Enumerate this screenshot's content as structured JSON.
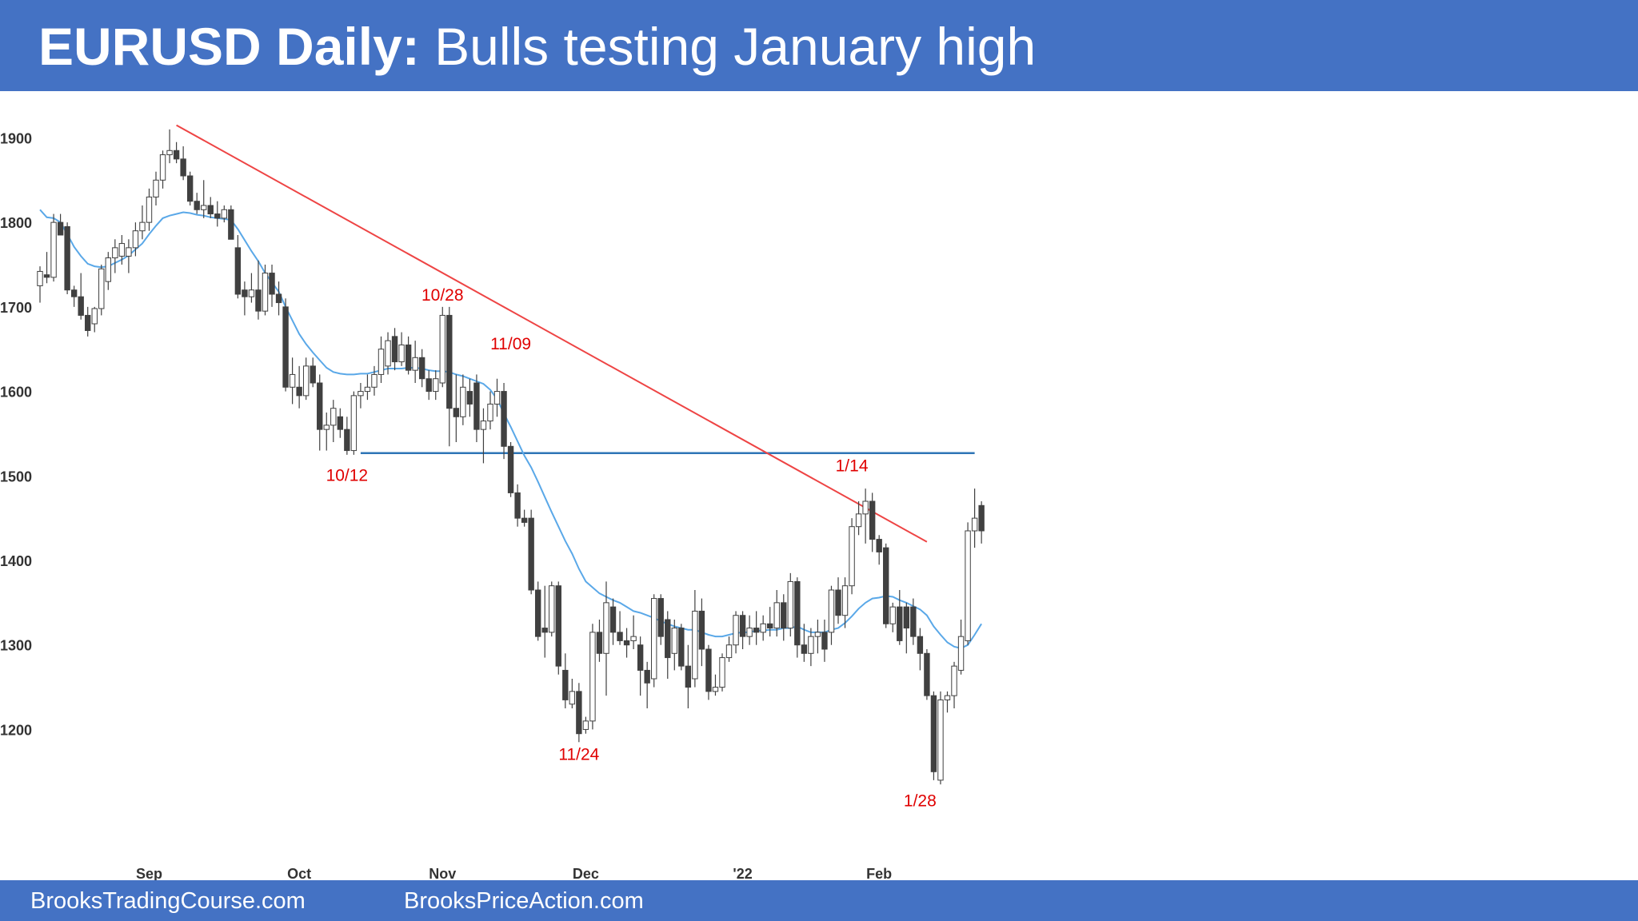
{
  "header": {
    "title_bold": "EURUSD Daily:",
    "title_rest": " Bulls testing January high"
  },
  "footer": {
    "link1": "BrooksTradingCourse.com",
    "link2": "BrooksPriceAction.com"
  },
  "colors": {
    "banner": "#4472c4",
    "bull_body": "#ffffff",
    "bear_body": "#404040",
    "wick": "#404040",
    "ema": "#5aa8e8",
    "trendline": "#ee4444",
    "support": "#2e75b6",
    "annotation": "#e00000"
  },
  "chart_data": {
    "type": "candlestick",
    "title": "EURUSD Daily",
    "y_tick_labels": [
      "1900",
      "1800",
      "1700",
      "1600",
      "1500",
      "1400",
      "1300",
      "1200"
    ],
    "y_tick_values": [
      1.19,
      1.18,
      1.17,
      1.16,
      1.15,
      1.14,
      1.13,
      1.12
    ],
    "ylim": [
      1.1085,
      1.1925
    ],
    "x_tick_labels": [
      {
        "label": "Sep",
        "bar": 16
      },
      {
        "label": "Oct",
        "bar": 38
      },
      {
        "label": "Nov",
        "bar": 59
      },
      {
        "label": "Dec",
        "bar": 80
      },
      {
        "label": "'22",
        "bar": 103
      },
      {
        "label": "Feb",
        "bar": 123
      }
    ],
    "grid": false,
    "candles": [
      [
        1.1725,
        1.1748,
        1.1705,
        1.1742
      ],
      [
        1.1738,
        1.1765,
        1.1728,
        1.1735
      ],
      [
        1.1735,
        1.181,
        1.173,
        1.18
      ],
      [
        1.18,
        1.181,
        1.1785,
        1.1785
      ],
      [
        1.1795,
        1.18,
        1.1715,
        1.172
      ],
      [
        1.172,
        1.1725,
        1.17,
        1.1712
      ],
      [
        1.1712,
        1.174,
        1.1685,
        1.169
      ],
      [
        1.169,
        1.17,
        1.1665,
        1.1672
      ],
      [
        1.168,
        1.17,
        1.167,
        1.1698
      ],
      [
        1.1698,
        1.175,
        1.169,
        1.1745
      ],
      [
        1.173,
        1.1765,
        1.172,
        1.1758
      ],
      [
        1.1758,
        1.178,
        1.174,
        1.177
      ],
      [
        1.176,
        1.1785,
        1.175,
        1.1775
      ],
      [
        1.176,
        1.178,
        1.174,
        1.177
      ],
      [
        1.177,
        1.18,
        1.176,
        1.179
      ],
      [
        1.179,
        1.182,
        1.178,
        1.18
      ],
      [
        1.18,
        1.184,
        1.179,
        1.183
      ],
      [
        1.183,
        1.186,
        1.182,
        1.185
      ],
      [
        1.185,
        1.1885,
        1.184,
        1.188
      ],
      [
        1.188,
        1.191,
        1.187,
        1.1885
      ],
      [
        1.1885,
        1.1895,
        1.187,
        1.1875
      ],
      [
        1.1875,
        1.189,
        1.185,
        1.1855
      ],
      [
        1.1855,
        1.186,
        1.182,
        1.1825
      ],
      [
        1.1825,
        1.1835,
        1.181,
        1.1815
      ],
      [
        1.1815,
        1.185,
        1.1805,
        1.182
      ],
      [
        1.182,
        1.183,
        1.1805,
        1.181
      ],
      [
        1.181,
        1.1825,
        1.1795,
        1.1805
      ],
      [
        1.1805,
        1.182,
        1.18,
        1.1815
      ],
      [
        1.1815,
        1.182,
        1.178,
        1.178
      ],
      [
        1.177,
        1.1785,
        1.171,
        1.1715
      ],
      [
        1.172,
        1.173,
        1.169,
        1.1712
      ],
      [
        1.1712,
        1.174,
        1.1705,
        1.172
      ],
      [
        1.172,
        1.1755,
        1.1685,
        1.1695
      ],
      [
        1.1695,
        1.175,
        1.169,
        1.174
      ],
      [
        1.174,
        1.175,
        1.17,
        1.1715
      ],
      [
        1.1715,
        1.173,
        1.169,
        1.1705
      ],
      [
        1.17,
        1.171,
        1.16,
        1.1605
      ],
      [
        1.1605,
        1.164,
        1.1585,
        1.162
      ],
      [
        1.1605,
        1.163,
        1.158,
        1.1595
      ],
      [
        1.1595,
        1.164,
        1.159,
        1.163
      ],
      [
        1.163,
        1.164,
        1.1605,
        1.161
      ],
      [
        1.161,
        1.162,
        1.153,
        1.1555
      ],
      [
        1.1555,
        1.1575,
        1.153,
        1.156
      ],
      [
        1.156,
        1.159,
        1.154,
        1.158
      ],
      [
        1.157,
        1.158,
        1.1545,
        1.1555
      ],
      [
        1.1555,
        1.157,
        1.1525,
        1.153
      ],
      [
        1.153,
        1.16,
        1.1525,
        1.1595
      ],
      [
        1.1595,
        1.161,
        1.158,
        1.16
      ],
      [
        1.16,
        1.162,
        1.159,
        1.1605
      ],
      [
        1.1605,
        1.163,
        1.1595,
        1.162
      ],
      [
        1.162,
        1.1665,
        1.161,
        1.165
      ],
      [
        1.163,
        1.167,
        1.162,
        1.166
      ],
      [
        1.1665,
        1.1675,
        1.1625,
        1.1635
      ],
      [
        1.1635,
        1.167,
        1.163,
        1.1655
      ],
      [
        1.1655,
        1.1665,
        1.162,
        1.1625
      ],
      [
        1.1625,
        1.166,
        1.161,
        1.164
      ],
      [
        1.164,
        1.165,
        1.1605,
        1.1615
      ],
      [
        1.1615,
        1.1625,
        1.159,
        1.16
      ],
      [
        1.16,
        1.1625,
        1.159,
        1.1615
      ],
      [
        1.161,
        1.17,
        1.1605,
        1.169
      ],
      [
        1.169,
        1.17,
        1.1535,
        1.158
      ],
      [
        1.158,
        1.162,
        1.154,
        1.157
      ],
      [
        1.157,
        1.162,
        1.156,
        1.1605
      ],
      [
        1.16,
        1.1615,
        1.157,
        1.1585
      ],
      [
        1.161,
        1.162,
        1.154,
        1.1555
      ],
      [
        1.1555,
        1.158,
        1.1515,
        1.1565
      ],
      [
        1.1565,
        1.16,
        1.1555,
        1.1585
      ],
      [
        1.1585,
        1.1615,
        1.157,
        1.16
      ],
      [
        1.16,
        1.161,
        1.152,
        1.1535
      ],
      [
        1.1535,
        1.154,
        1.1475,
        1.148
      ],
      [
        1.148,
        1.149,
        1.144,
        1.145
      ],
      [
        1.145,
        1.146,
        1.144,
        1.1445
      ],
      [
        1.145,
        1.146,
        1.136,
        1.1365
      ],
      [
        1.1365,
        1.1375,
        1.1305,
        1.131
      ],
      [
        1.132,
        1.137,
        1.1285,
        1.1315
      ],
      [
        1.1315,
        1.1375,
        1.131,
        1.137
      ],
      [
        1.137,
        1.1375,
        1.1265,
        1.1275
      ],
      [
        1.127,
        1.129,
        1.1225,
        1.1235
      ],
      [
        1.123,
        1.126,
        1.1225,
        1.1245
      ],
      [
        1.1245,
        1.1255,
        1.1185,
        1.1195
      ],
      [
        1.12,
        1.1215,
        1.1195,
        1.121
      ],
      [
        1.121,
        1.1325,
        1.12,
        1.1315
      ],
      [
        1.1315,
        1.133,
        1.128,
        1.129
      ],
      [
        1.129,
        1.1375,
        1.124,
        1.135
      ],
      [
        1.1345,
        1.1355,
        1.13,
        1.1315
      ],
      [
        1.1315,
        1.134,
        1.13,
        1.1305
      ],
      [
        1.1305,
        1.132,
        1.1285,
        1.13
      ],
      [
        1.1305,
        1.1335,
        1.1295,
        1.131
      ],
      [
        1.13,
        1.131,
        1.124,
        1.127
      ],
      [
        1.127,
        1.128,
        1.1225,
        1.1255
      ],
      [
        1.126,
        1.136,
        1.125,
        1.1355
      ],
      [
        1.1355,
        1.136,
        1.13,
        1.131
      ],
      [
        1.133,
        1.134,
        1.126,
        1.1285
      ],
      [
        1.129,
        1.133,
        1.127,
        1.132
      ],
      [
        1.132,
        1.1325,
        1.127,
        1.1275
      ],
      [
        1.1275,
        1.13,
        1.1225,
        1.125
      ],
      [
        1.126,
        1.1365,
        1.125,
        1.134
      ],
      [
        1.134,
        1.1355,
        1.1275,
        1.1295
      ],
      [
        1.1295,
        1.13,
        1.1235,
        1.1245
      ],
      [
        1.1245,
        1.1265,
        1.124,
        1.125
      ],
      [
        1.125,
        1.129,
        1.1245,
        1.1285
      ],
      [
        1.1285,
        1.131,
        1.128,
        1.13
      ],
      [
        1.13,
        1.134,
        1.129,
        1.1335
      ],
      [
        1.1335,
        1.134,
        1.1295,
        1.131
      ],
      [
        1.131,
        1.1335,
        1.13,
        1.132
      ],
      [
        1.132,
        1.134,
        1.13,
        1.1315
      ],
      [
        1.1315,
        1.1335,
        1.1305,
        1.1325
      ],
      [
        1.1325,
        1.1345,
        1.131,
        1.132
      ],
      [
        1.132,
        1.1365,
        1.131,
        1.135
      ],
      [
        1.135,
        1.136,
        1.1305,
        1.132
      ],
      [
        1.132,
        1.1385,
        1.131,
        1.1375
      ],
      [
        1.1375,
        1.138,
        1.1285,
        1.13
      ],
      [
        1.13,
        1.1325,
        1.128,
        1.129
      ],
      [
        1.129,
        1.132,
        1.1275,
        1.131
      ],
      [
        1.131,
        1.133,
        1.129,
        1.1315
      ],
      [
        1.1315,
        1.133,
        1.128,
        1.1295
      ],
      [
        1.1315,
        1.137,
        1.13,
        1.1365
      ],
      [
        1.1365,
        1.138,
        1.1325,
        1.1335
      ],
      [
        1.1335,
        1.138,
        1.132,
        1.137
      ],
      [
        1.137,
        1.145,
        1.136,
        1.144
      ],
      [
        1.144,
        1.147,
        1.143,
        1.1455
      ],
      [
        1.1455,
        1.1485,
        1.142,
        1.147
      ],
      [
        1.147,
        1.148,
        1.141,
        1.1425
      ],
      [
        1.1425,
        1.143,
        1.1395,
        1.141
      ],
      [
        1.1415,
        1.142,
        1.132,
        1.1325
      ],
      [
        1.1325,
        1.135,
        1.1315,
        1.1345
      ],
      [
        1.1345,
        1.1365,
        1.13,
        1.1305
      ],
      [
        1.1345,
        1.135,
        1.129,
        1.132
      ],
      [
        1.1345,
        1.1355,
        1.13,
        1.131
      ],
      [
        1.131,
        1.132,
        1.127,
        1.129
      ],
      [
        1.129,
        1.1295,
        1.1235,
        1.124
      ],
      [
        1.124,
        1.1245,
        1.114,
        1.115
      ],
      [
        1.114,
        1.1245,
        1.1135,
        1.1235
      ],
      [
        1.1235,
        1.1245,
        1.122,
        1.124
      ],
      [
        1.124,
        1.128,
        1.1225,
        1.1275
      ],
      [
        1.127,
        1.133,
        1.1265,
        1.131
      ],
      [
        1.1305,
        1.1445,
        1.13,
        1.1435
      ],
      [
        1.1435,
        1.1485,
        1.1415,
        1.145
      ],
      [
        1.1465,
        1.147,
        1.142,
        1.1435
      ]
    ],
    "ema_20": [
      1.1815,
      1.1806,
      1.1805,
      1.18,
      1.1786,
      1.1771,
      1.176,
      1.1751,
      1.1748,
      1.1747,
      1.1748,
      1.1752,
      1.1756,
      1.1761,
      1.1768,
      1.1775,
      1.1786,
      1.1796,
      1.1805,
      1.1808,
      1.181,
      1.1812,
      1.1811,
      1.1809,
      1.1808,
      1.1806,
      1.1805,
      1.1804,
      1.1803,
      1.1792,
      1.1779,
      1.1766,
      1.1754,
      1.174,
      1.1729,
      1.1718,
      1.17,
      1.1684,
      1.1668,
      1.1656,
      1.1646,
      1.1637,
      1.1628,
      1.1623,
      1.1621,
      1.162,
      1.162,
      1.1621,
      1.1621,
      1.1623,
      1.1625,
      1.1627,
      1.1627,
      1.1627,
      1.1628,
      1.1628,
      1.1627,
      1.1625,
      1.1624,
      1.1624,
      1.1623,
      1.162,
      1.1618,
      1.1615,
      1.1612,
      1.1609,
      1.1602,
      1.1591,
      1.1574,
      1.1558,
      1.1541,
      1.1524,
      1.151,
      1.1493,
      1.1475,
      1.1457,
      1.144,
      1.1423,
      1.1408,
      1.139,
      1.1375,
      1.1368,
      1.1361,
      1.1357,
      1.1353,
      1.135,
      1.1345,
      1.134,
      1.1338,
      1.1335,
      1.1332,
      1.1328,
      1.1325,
      1.1322,
      1.132,
      1.1318,
      1.1318,
      1.1315,
      1.1312,
      1.131,
      1.131,
      1.1312,
      1.1314,
      1.1315,
      1.1315,
      1.1317,
      1.1317,
      1.1318,
      1.1318,
      1.132,
      1.132,
      1.1322,
      1.1318,
      1.1315,
      1.1315,
      1.1315,
      1.1318,
      1.132,
      1.1326,
      1.1334,
      1.1343,
      1.135,
      1.1355,
      1.1356,
      1.1358,
      1.1357,
      1.1353,
      1.135,
      1.1346,
      1.1342,
      1.1335,
      1.1322,
      1.1312,
      1.1303,
      1.1298,
      1.1296,
      1.13,
      1.1312,
      1.1325
    ],
    "trendline": {
      "from": {
        "bar": 20,
        "price": 1.1915
      },
      "to": {
        "bar": 130,
        "price": 1.1422
      }
    },
    "support_line": {
      "price": 1.1527,
      "from_bar": 47,
      "to_bar": 137
    },
    "annotations": [
      {
        "text": "10/28",
        "bar": 59,
        "price": 1.17,
        "anchor": "above"
      },
      {
        "text": "11/09",
        "bar": 69,
        "price": 1.1642,
        "anchor": "above"
      },
      {
        "text": "10/12",
        "bar": 45,
        "price": 1.1515,
        "anchor": "below"
      },
      {
        "text": "1/14",
        "bar": 119,
        "price": 1.1498,
        "anchor": "above"
      },
      {
        "text": "11/24",
        "bar": 79,
        "price": 1.1185,
        "anchor": "below"
      },
      {
        "text": "1/28",
        "bar": 129,
        "price": 1.113,
        "anchor": "below"
      }
    ]
  }
}
